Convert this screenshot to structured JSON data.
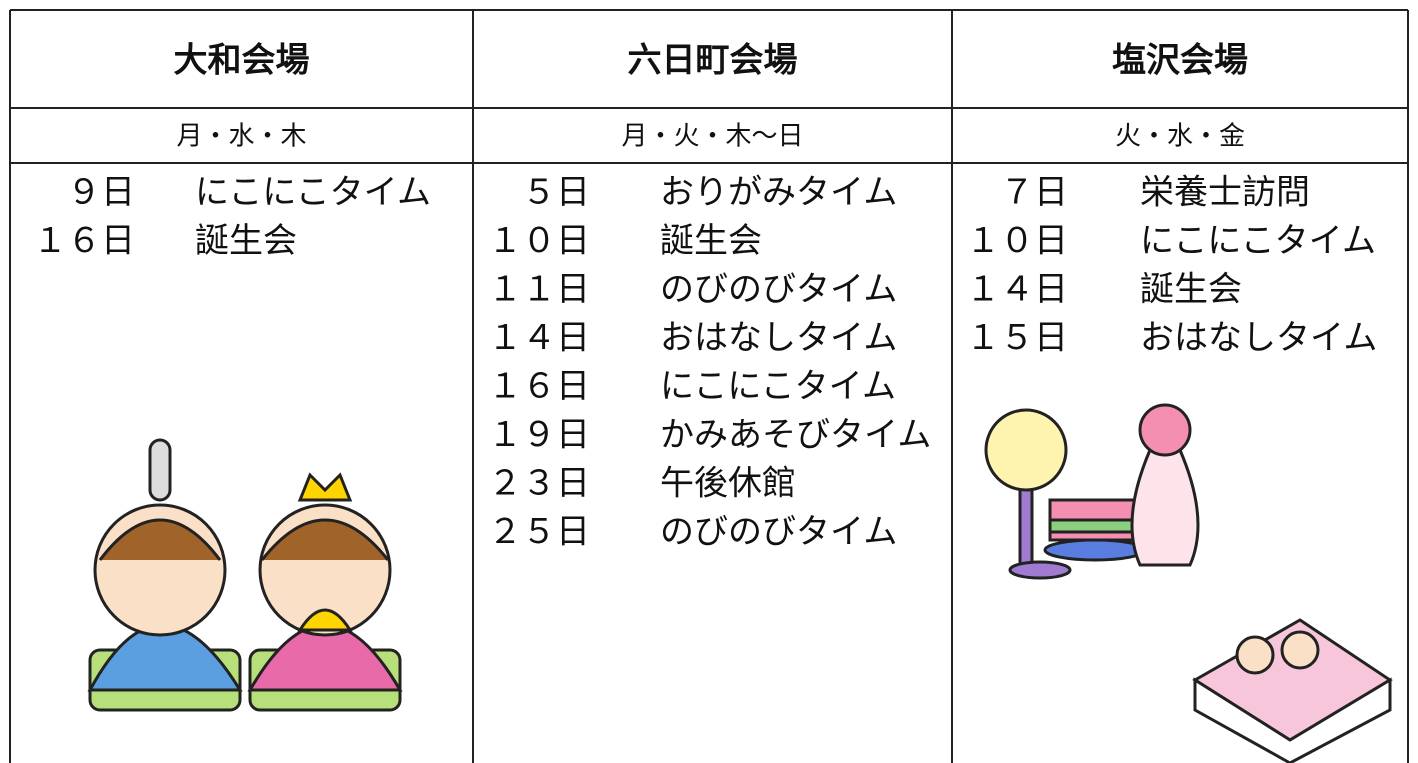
{
  "venues": [
    {
      "name": "大和会場",
      "days": "月・水・木",
      "events": [
        {
          "date": "９日",
          "title": "にこにこタイム"
        },
        {
          "date": "１６日",
          "title": "誕生会"
        }
      ]
    },
    {
      "name": "六日町会場",
      "days": "月・火・木～日",
      "events": [
        {
          "date": "５日",
          "title": "おりがみタイム"
        },
        {
          "date": "１０日",
          "title": "誕生会"
        },
        {
          "date": "１１日",
          "title": "のびのびタイム"
        },
        {
          "date": "１４日",
          "title": "おはなしタイム"
        },
        {
          "date": "１６日",
          "title": "にこにこタイム"
        },
        {
          "date": "１９日",
          "title": "かみあそびタイム"
        },
        {
          "date": "２３日",
          "title": "午後休館"
        },
        {
          "date": "２５日",
          "title": "のびのびタイム"
        }
      ]
    },
    {
      "name": "塩沢会場",
      "days": "火・水・金",
      "events": [
        {
          "date": "７日",
          "title": "栄養士訪問"
        },
        {
          "date": "１０日",
          "title": "にこにこタイム"
        },
        {
          "date": "１４日",
          "title": "誕生会"
        },
        {
          "date": "１５日",
          "title": "おはなしタイム"
        }
      ]
    }
  ]
}
